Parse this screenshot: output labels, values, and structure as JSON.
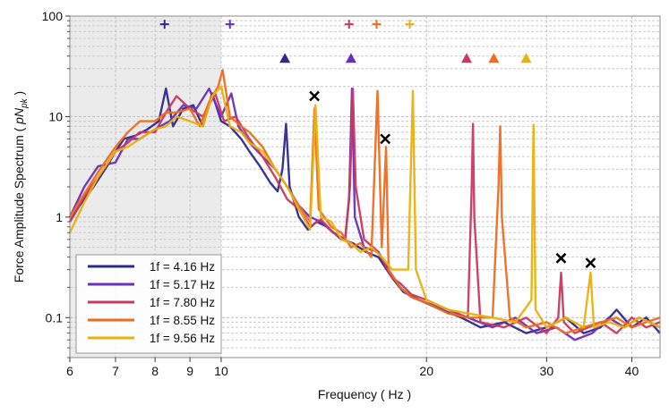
{
  "chart_data": {
    "type": "line",
    "title": "",
    "xlabel": "Frequency ( Hz )",
    "ylabel_prefix": "Force Amplitude Spectrum ( ",
    "ylabel_unit": "pN",
    "ylabel_sub": "pk",
    "ylabel_suffix": " )",
    "x_scale": "log",
    "y_scale": "log",
    "xlim": [
      6,
      44
    ],
    "ylim": [
      0.04,
      100
    ],
    "x_ticks": [
      6,
      7,
      8,
      9,
      10,
      20,
      30,
      40
    ],
    "x_tick_labels": [
      "6",
      "7",
      "8",
      "9",
      "10",
      "20",
      "30",
      "40"
    ],
    "y_ticks": [
      0.1,
      1,
      10,
      100
    ],
    "y_tick_labels": [
      "0.1",
      "1",
      "10",
      "100"
    ],
    "grid": true,
    "shaded_region": {
      "x": [
        6,
        10
      ],
      "color": "#ebebeb"
    },
    "legend": {
      "placement": "bottom-left"
    },
    "series": [
      {
        "name": "1f = 4.16 Hz",
        "color": "#2d2a8e",
        "points": [
          [
            6,
            0.9
          ],
          [
            6.2,
            1.3
          ],
          [
            6.5,
            2
          ],
          [
            6.8,
            3.2
          ],
          [
            7,
            4.5
          ],
          [
            7.2,
            6
          ],
          [
            7.5,
            6.5
          ],
          [
            7.8,
            7.5
          ],
          [
            8.1,
            9
          ],
          [
            8.3,
            19
          ],
          [
            8.5,
            8
          ],
          [
            8.8,
            12
          ],
          [
            9.1,
            13
          ],
          [
            9.4,
            8
          ],
          [
            9.7,
            17
          ],
          [
            10,
            9
          ],
          [
            10.3,
            8
          ],
          [
            10.7,
            6
          ],
          [
            11,
            4.5
          ],
          [
            11.4,
            3.2
          ],
          [
            11.8,
            2.2
          ],
          [
            12.1,
            1.8
          ],
          [
            12.3,
            3
          ],
          [
            12.45,
            8.5
          ],
          [
            12.6,
            2
          ],
          [
            13,
            1
          ],
          [
            13.4,
            0.75
          ],
          [
            13.8,
            0.9
          ],
          [
            14.3,
            0.8
          ],
          [
            15,
            0.6
          ],
          [
            15.6,
            0.55
          ],
          [
            16.3,
            0.45
          ],
          [
            17,
            0.4
          ],
          [
            17.8,
            0.25
          ],
          [
            18.5,
            0.18
          ],
          [
            19.5,
            0.15
          ],
          [
            21,
            0.12
          ],
          [
            22.5,
            0.1
          ],
          [
            24,
            0.08
          ],
          [
            26,
            0.09
          ],
          [
            28,
            0.07
          ],
          [
            30,
            0.08
          ],
          [
            32,
            0.1
          ],
          [
            34,
            0.07
          ],
          [
            36,
            0.08
          ],
          [
            38,
            0.12
          ],
          [
            40,
            0.08
          ],
          [
            42,
            0.1
          ],
          [
            44,
            0.07
          ]
        ]
      },
      {
        "name": "1f = 5.17 Hz",
        "color": "#6a30b8",
        "points": [
          [
            6,
            1
          ],
          [
            6.3,
            2
          ],
          [
            6.6,
            3.2
          ],
          [
            7,
            3.5
          ],
          [
            7.3,
            6
          ],
          [
            7.6,
            6
          ],
          [
            8,
            7.5
          ],
          [
            8.4,
            9
          ],
          [
            8.8,
            13
          ],
          [
            9.2,
            12
          ],
          [
            9.6,
            19
          ],
          [
            10,
            10
          ],
          [
            10.35,
            17
          ],
          [
            10.6,
            8
          ],
          [
            11,
            5.5
          ],
          [
            11.5,
            4
          ],
          [
            12,
            3
          ],
          [
            12.5,
            2
          ],
          [
            13,
            1.3
          ],
          [
            13.5,
            1
          ],
          [
            14,
            0.9
          ],
          [
            14.6,
            0.7
          ],
          [
            15.2,
            0.6
          ],
          [
            15.4,
            1.5
          ],
          [
            15.55,
            19
          ],
          [
            15.7,
            1
          ],
          [
            16.2,
            0.5
          ],
          [
            17,
            0.45
          ],
          [
            17.6,
            0.3
          ],
          [
            18.3,
            0.2
          ],
          [
            19,
            0.16
          ],
          [
            20,
            0.14
          ],
          [
            21.5,
            0.12
          ],
          [
            23,
            0.1
          ],
          [
            25,
            0.08
          ],
          [
            27,
            0.1
          ],
          [
            29,
            0.07
          ],
          [
            31,
            0.08
          ],
          [
            33,
            0.06
          ],
          [
            35,
            0.07
          ],
          [
            37,
            0.1
          ],
          [
            39,
            0.08
          ],
          [
            41,
            0.1
          ],
          [
            44,
            0.08
          ]
        ]
      },
      {
        "name": "1f = 7.80 Hz",
        "color": "#c9395f",
        "points": [
          [
            6,
            0.9
          ],
          [
            6.3,
            1.6
          ],
          [
            6.6,
            2.5
          ],
          [
            7,
            4.5
          ],
          [
            7.3,
            5.5
          ],
          [
            7.6,
            7
          ],
          [
            8,
            7
          ],
          [
            8.3,
            11
          ],
          [
            8.6,
            16
          ],
          [
            9,
            12
          ],
          [
            9.4,
            10
          ],
          [
            9.8,
            17
          ],
          [
            10.1,
            9
          ],
          [
            10.5,
            10
          ],
          [
            11,
            6
          ],
          [
            11.5,
            4
          ],
          [
            12,
            2.5
          ],
          [
            12.5,
            1.5
          ],
          [
            13,
            1.2
          ],
          [
            13.5,
            0.8
          ],
          [
            14,
            0.95
          ],
          [
            14.6,
            0.7
          ],
          [
            15.2,
            0.6
          ],
          [
            15.45,
            2
          ],
          [
            15.6,
            19
          ],
          [
            15.75,
            2
          ],
          [
            16.2,
            0.6
          ],
          [
            17,
            0.45
          ],
          [
            17.8,
            0.25
          ],
          [
            18.3,
            0.22
          ],
          [
            19,
            0.17
          ],
          [
            20,
            0.15
          ],
          [
            21.5,
            0.12
          ],
          [
            23,
            0.1
          ],
          [
            23.3,
            2
          ],
          [
            23.4,
            8.5
          ],
          [
            23.5,
            1
          ],
          [
            24,
            0.09
          ],
          [
            26,
            0.08
          ],
          [
            28,
            0.1
          ],
          [
            30,
            0.07
          ],
          [
            31.2,
            0.1
          ],
          [
            31.5,
            0.28
          ],
          [
            31.8,
            0.09
          ],
          [
            33,
            0.07
          ],
          [
            36,
            0.09
          ],
          [
            38,
            0.07
          ],
          [
            40,
            0.1
          ],
          [
            42,
            0.08
          ],
          [
            44,
            0.09
          ]
        ]
      },
      {
        "name": "1f = 8.55 Hz",
        "color": "#f06b1d",
        "points": [
          [
            6,
            1
          ],
          [
            6.3,
            1.7
          ],
          [
            6.6,
            2.8
          ],
          [
            7,
            5
          ],
          [
            7.3,
            7
          ],
          [
            7.6,
            9
          ],
          [
            8,
            9
          ],
          [
            8.3,
            11
          ],
          [
            8.6,
            11
          ],
          [
            9,
            12
          ],
          [
            9.3,
            8
          ],
          [
            9.6,
            14
          ],
          [
            9.9,
            20
          ],
          [
            10.05,
            29
          ],
          [
            10.3,
            10
          ],
          [
            10.7,
            8
          ],
          [
            11,
            7
          ],
          [
            11.5,
            5
          ],
          [
            12,
            3
          ],
          [
            12.5,
            2
          ],
          [
            13,
            1.3
          ],
          [
            13.5,
            0.9
          ],
          [
            13.7,
            12
          ],
          [
            13.9,
            1.2
          ],
          [
            14.5,
            0.8
          ],
          [
            15,
            0.7
          ],
          [
            15.5,
            0.5
          ],
          [
            16,
            0.55
          ],
          [
            16.6,
            0.4
          ],
          [
            16.95,
            18
          ],
          [
            17.2,
            0.5
          ],
          [
            17.45,
            5
          ],
          [
            17.6,
            0.3
          ],
          [
            18.3,
            0.2
          ],
          [
            19,
            0.16
          ],
          [
            20,
            0.14
          ],
          [
            21.5,
            0.11
          ],
          [
            23,
            0.1
          ],
          [
            25,
            0.1
          ],
          [
            25.5,
            2
          ],
          [
            25.65,
            8
          ],
          [
            25.8,
            1
          ],
          [
            26.5,
            0.1
          ],
          [
            28,
            0.08
          ],
          [
            30,
            0.09
          ],
          [
            32,
            0.07
          ],
          [
            34,
            0.08
          ],
          [
            36,
            0.09
          ],
          [
            38,
            0.1
          ],
          [
            40,
            0.08
          ],
          [
            42,
            0.09
          ],
          [
            44,
            0.1
          ]
        ]
      },
      {
        "name": "1f = 9.56 Hz",
        "color": "#e9b10c",
        "points": [
          [
            6,
            0.7
          ],
          [
            6.3,
            1.4
          ],
          [
            6.6,
            2.5
          ],
          [
            7,
            4.5
          ],
          [
            7.3,
            5
          ],
          [
            7.6,
            6
          ],
          [
            8,
            7.5
          ],
          [
            8.3,
            8
          ],
          [
            8.6,
            10
          ],
          [
            9,
            9
          ],
          [
            9.4,
            8
          ],
          [
            9.7,
            16
          ],
          [
            10,
            20
          ],
          [
            10.3,
            8
          ],
          [
            10.7,
            7
          ],
          [
            11,
            5.5
          ],
          [
            11.5,
            4.5
          ],
          [
            12,
            3
          ],
          [
            12.5,
            2
          ],
          [
            13,
            1.2
          ],
          [
            13.5,
            0.75
          ],
          [
            13.75,
            13
          ],
          [
            14,
            1
          ],
          [
            14.5,
            0.9
          ],
          [
            15,
            0.6
          ],
          [
            15.5,
            0.55
          ],
          [
            16,
            0.45
          ],
          [
            16.6,
            0.5
          ],
          [
            17.2,
            0.4
          ],
          [
            17.8,
            0.3
          ],
          [
            18.8,
            0.3
          ],
          [
            19.1,
            18
          ],
          [
            19.3,
            0.3
          ],
          [
            20,
            0.15
          ],
          [
            21.5,
            0.12
          ],
          [
            23,
            0.11
          ],
          [
            25,
            0.1
          ],
          [
            27,
            0.09
          ],
          [
            28.5,
            0.15
          ],
          [
            28.7,
            8.3
          ],
          [
            28.9,
            0.12
          ],
          [
            30,
            0.08
          ],
          [
            32,
            0.1
          ],
          [
            34,
            0.08
          ],
          [
            34.8,
            0.28
          ],
          [
            35.2,
            0.08
          ],
          [
            37,
            0.09
          ],
          [
            39,
            0.08
          ],
          [
            41,
            0.1
          ],
          [
            44,
            0.08
          ]
        ]
      }
    ],
    "markers": {
      "plus": [
        {
          "x": 8.26,
          "y": 83,
          "color": "#2d2a8e"
        },
        {
          "x": 10.3,
          "y": 83,
          "color": "#6a30b8"
        },
        {
          "x": 15.4,
          "y": 83,
          "color": "#c9395f"
        },
        {
          "x": 16.9,
          "y": 83,
          "color": "#f06b1d"
        },
        {
          "x": 18.9,
          "y": 83,
          "color": "#e9b10c"
        }
      ],
      "triangle": [
        {
          "x": 12.4,
          "y": 38,
          "color": "#2d2a8e"
        },
        {
          "x": 15.5,
          "y": 38,
          "color": "#6a30b8"
        },
        {
          "x": 22.9,
          "y": 38,
          "color": "#c9395f"
        },
        {
          "x": 25.1,
          "y": 38,
          "color": "#f06b1d"
        },
        {
          "x": 28.0,
          "y": 38,
          "color": "#e9b10c"
        }
      ],
      "cross": [
        {
          "x": 13.7,
          "y": 16,
          "color": "#000000"
        },
        {
          "x": 17.4,
          "y": 6.0,
          "color": "#000000"
        },
        {
          "x": 31.5,
          "y": 0.39,
          "color": "#000000"
        },
        {
          "x": 34.8,
          "y": 0.35,
          "color": "#000000"
        }
      ]
    }
  }
}
